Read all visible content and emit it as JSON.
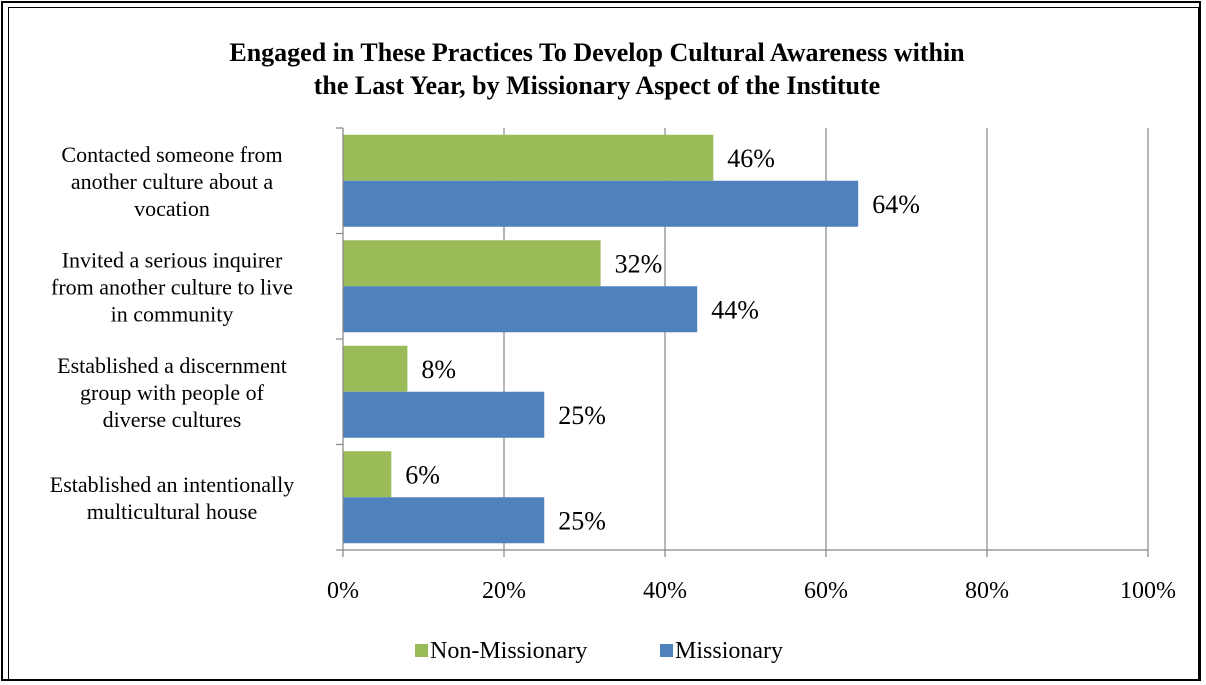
{
  "chart_data": {
    "type": "bar",
    "orientation": "horizontal",
    "title_lines": [
      "Engaged in These Practices To Develop Cultural Awareness within",
      "the Last Year, by Missionary Aspect of the Institute"
    ],
    "categories": [
      [
        "Contacted someone from",
        "another culture about a",
        "vocation"
      ],
      [
        "Invited a serious inquirer",
        "from another culture to live",
        "in community"
      ],
      [
        "Established a discernment",
        "group with people of",
        "diverse cultures"
      ],
      [
        "Established an intentionally",
        "multicultural house"
      ]
    ],
    "series": [
      {
        "name": "Non-Missionary",
        "color": "#9BBB59",
        "values": [
          46,
          32,
          8,
          6
        ],
        "labels": [
          "46%",
          "32%",
          "8%",
          "6%"
        ]
      },
      {
        "name": "Missionary",
        "color": "#4F81BD",
        "values": [
          64,
          44,
          25,
          25
        ],
        "labels": [
          "64%",
          "44%",
          "25%",
          "25%"
        ]
      }
    ],
    "xlim": [
      0,
      100
    ],
    "x_ticks": [
      0,
      20,
      40,
      60,
      80,
      100
    ],
    "x_tick_labels": [
      "0%",
      "20%",
      "40%",
      "60%",
      "80%",
      "100%"
    ],
    "grid": true,
    "legend_position": "bottom"
  }
}
